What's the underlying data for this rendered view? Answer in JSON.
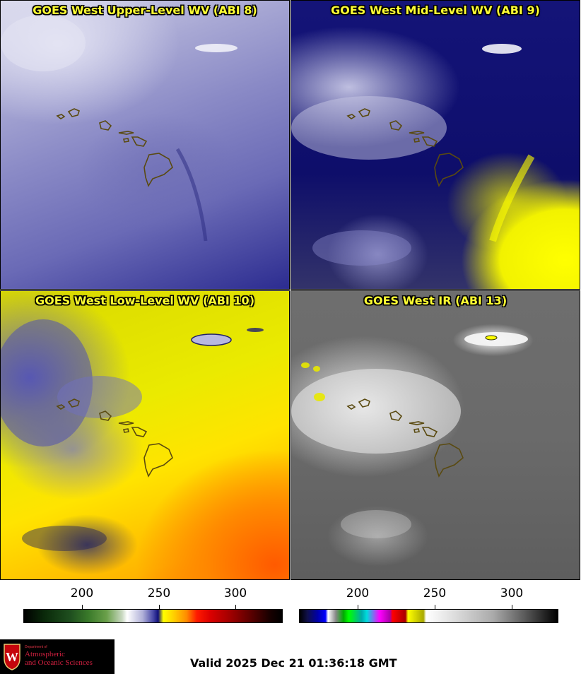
{
  "panels": [
    {
      "id": "upper",
      "title": "GOES West Upper-Level WV (ABI 8)"
    },
    {
      "id": "mid",
      "title": "GOES West Mid-Level WV (ABI 9)"
    },
    {
      "id": "low",
      "title": "GOES West Low-Level WV (ABI 10)"
    },
    {
      "id": "ir",
      "title": "GOES West IR (ABI 13)"
    }
  ],
  "colorbars": [
    {
      "id": "wv",
      "ticks": [
        "200",
        "250",
        "300"
      ]
    },
    {
      "id": "ir",
      "ticks": [
        "200",
        "250",
        "300"
      ]
    }
  ],
  "colors": {
    "title_text": "#ffff33",
    "coastline": "#5a4a10"
  },
  "logo": {
    "department": "Department of",
    "line1": "Atmospheric",
    "line2": "and Oceanic Sciences"
  },
  "footer": {
    "valid": "Valid 2025 Dec 21 01:36:18 GMT"
  }
}
